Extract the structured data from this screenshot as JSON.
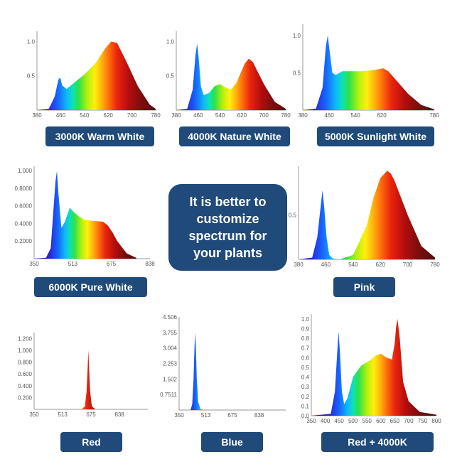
{
  "center_message": "It is better to customize spectrum for your plants",
  "chart_data": [
    {
      "type": "area",
      "label": "3000K Warm White",
      "x": [
        380,
        420,
        440,
        452,
        458,
        465,
        480,
        500,
        540,
        580,
        610,
        630,
        650,
        680,
        720,
        760,
        780
      ],
      "y": [
        0,
        0.02,
        0.2,
        0.44,
        0.48,
        0.36,
        0.31,
        0.38,
        0.52,
        0.7,
        0.9,
        1.0,
        0.98,
        0.72,
        0.35,
        0.08,
        0.02
      ],
      "xlim": [
        380,
        780
      ],
      "ylim": [
        0,
        1.15
      ],
      "xticks": [
        "380",
        "460",
        "540",
        "620",
        "700",
        "780"
      ],
      "yticks": [
        "0.5",
        "1.0"
      ]
    },
    {
      "type": "area",
      "label": "4000K Nature White",
      "x": [
        380,
        420,
        440,
        450,
        456,
        462,
        470,
        480,
        500,
        520,
        540,
        560,
        580,
        600,
        630,
        645,
        660,
        700,
        740,
        780
      ],
      "y": [
        0,
        0.02,
        0.3,
        0.8,
        0.97,
        0.75,
        0.35,
        0.22,
        0.25,
        0.35,
        0.38,
        0.33,
        0.3,
        0.4,
        0.68,
        0.75,
        0.7,
        0.38,
        0.12,
        0.02
      ],
      "xlim": [
        380,
        780
      ],
      "ylim": [
        0,
        1.15
      ],
      "xticks": [
        "380",
        "460",
        "540",
        "620",
        "700",
        "780"
      ],
      "yticks": [
        "0.5",
        "1.0"
      ]
    },
    {
      "type": "area",
      "label": "5000K Sunlight White",
      "x": [
        380,
        420,
        440,
        450,
        456,
        462,
        470,
        480,
        500,
        520,
        560,
        600,
        625,
        640,
        660,
        700,
        740,
        780
      ],
      "y": [
        0,
        0.02,
        0.3,
        0.85,
        1.0,
        0.78,
        0.5,
        0.47,
        0.52,
        0.52,
        0.52,
        0.54,
        0.56,
        0.52,
        0.42,
        0.22,
        0.07,
        0.01
      ],
      "xlim": [
        380,
        780
      ],
      "ylim": [
        0,
        1.15
      ],
      "xticks": [
        "380",
        "460",
        "540",
        "620",
        "780"
      ],
      "yticks": [
        "0.5",
        "1.0"
      ]
    },
    {
      "type": "area",
      "label": "6000K Pure White",
      "x": [
        350,
        400,
        420,
        430,
        440,
        446,
        452,
        465,
        480,
        500,
        520,
        560,
        600,
        640,
        660,
        680,
        700,
        740,
        780
      ],
      "y": [
        0,
        0.01,
        0.12,
        0.5,
        0.88,
        1.0,
        0.75,
        0.35,
        0.42,
        0.58,
        0.52,
        0.44,
        0.43,
        0.42,
        0.38,
        0.3,
        0.2,
        0.06,
        0.01
      ],
      "xlim": [
        350,
        838
      ],
      "ylim": [
        0,
        1.05
      ],
      "xticks": [
        "350",
        "513",
        "675",
        "838"
      ],
      "yticks": [
        "0.2000",
        "0.4000",
        "0.6000",
        "0.8000",
        "1.000"
      ]
    },
    {
      "type": "area",
      "label": "Pink",
      "x": [
        380,
        420,
        435,
        445,
        450,
        455,
        462,
        470,
        480,
        500,
        540,
        580,
        600,
        620,
        640,
        650,
        660,
        700,
        740,
        780
      ],
      "y": [
        0,
        0.02,
        0.25,
        0.6,
        0.78,
        0.6,
        0.25,
        0.05,
        0.01,
        0,
        0.05,
        0.38,
        0.7,
        0.92,
        1.0,
        0.97,
        0.9,
        0.5,
        0.15,
        0.02
      ],
      "xlim": [
        380,
        780
      ],
      "ylim": [
        0,
        1.05
      ],
      "xticks": [
        "380",
        "460",
        "540",
        "620",
        "700",
        "780"
      ],
      "yticks": [
        "0.5"
      ]
    },
    {
      "type": "area",
      "label": "Red",
      "x": [
        350,
        620,
        640,
        650,
        656,
        660,
        664,
        670,
        680,
        700,
        838
      ],
      "y": [
        0,
        0,
        0.05,
        0.3,
        0.7,
        1.0,
        0.7,
        0.3,
        0.05,
        0,
        0
      ],
      "xlim": [
        350,
        1000
      ],
      "ylim": [
        0,
        1.3
      ],
      "xticks": [
        "350",
        "513",
        "675",
        "838"
      ],
      "yticks": [
        "0.200",
        "0.400",
        "0.600",
        "0.800",
        "1.000",
        "1.200"
      ]
    },
    {
      "type": "area",
      "label": "Blue",
      "x": [
        350,
        420,
        430,
        438,
        444,
        448,
        452,
        458,
        466,
        480,
        500,
        838
      ],
      "y": [
        0,
        0,
        0.3,
        1.5,
        3.1,
        3.75,
        3.1,
        1.5,
        0.4,
        0.05,
        0,
        0
      ],
      "xlim": [
        350,
        1000
      ],
      "ylim": [
        0,
        4.506
      ],
      "xticks": [
        "350",
        "513",
        "675",
        "838"
      ],
      "yticks": [
        "0.7511",
        "1.502",
        "2.253",
        "3.004",
        "3.755",
        "4.506"
      ]
    },
    {
      "type": "area",
      "label": "Red + 4000K",
      "x": [
        350,
        420,
        435,
        443,
        448,
        453,
        460,
        468,
        480,
        500,
        530,
        560,
        580,
        600,
        620,
        640,
        650,
        655,
        660,
        668,
        680,
        700,
        740,
        800
      ],
      "y": [
        0,
        0.02,
        0.25,
        0.65,
        0.87,
        0.65,
        0.25,
        0.12,
        0.18,
        0.4,
        0.52,
        0.57,
        0.62,
        0.64,
        0.6,
        0.58,
        0.75,
        0.92,
        1.0,
        0.8,
        0.35,
        0.15,
        0.04,
        0.01
      ],
      "xlim": [
        350,
        800
      ],
      "ylim": [
        0,
        1.05
      ],
      "xticks": [
        "350",
        "400",
        "450",
        "500",
        "550",
        "600",
        "650",
        "700",
        "750",
        "800"
      ],
      "yticks": [
        "0.0",
        "0.1",
        "0.2",
        "0.3",
        "0.4",
        "0.5",
        "0.6",
        "0.7",
        "0.8",
        "0.9",
        "1.0"
      ]
    }
  ]
}
